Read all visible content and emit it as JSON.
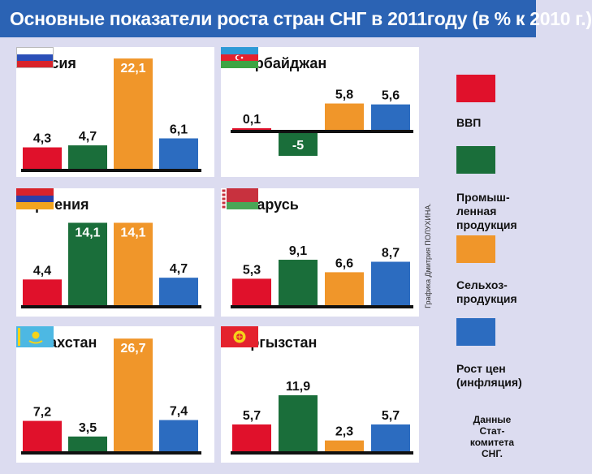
{
  "title": "Основные показатели роста стран СНГ в 2011году (в % к 2010 г.)",
  "legend": [
    {
      "label": "ВВП",
      "color": "#e0112b"
    },
    {
      "label": "Промыш-\nленная\nпродукция",
      "color": "#1a6e3a"
    },
    {
      "label": "Сельхоз-\nпродукция",
      "color": "#f0962a"
    },
    {
      "label": "Рост цен\n(инфляция)",
      "color": "#2c6cc0"
    }
  ],
  "credit": "Графика Дмитрия ПОЛУХИНА.",
  "source_note": "Данные\nСтат-\nкомитета\nСНГ.",
  "icons": [
    "russia-flag-icon",
    "azerbaijan-flag-icon",
    "armenia-flag-icon",
    "belarus-flag-icon",
    "kazakhstan-flag-icon",
    "kyrgyzstan-flag-icon"
  ],
  "chart_data": [
    {
      "type": "bar",
      "title": "Россия",
      "categories": [
        "ВВП",
        "Промышленная продукция",
        "Сельхозпродукция",
        "Рост цен (инфляция)"
      ],
      "values": [
        4.3,
        4.7,
        22.1,
        6.1
      ],
      "labels": [
        "4,3",
        "4,7",
        "22,1",
        "6,1"
      ]
    },
    {
      "type": "bar",
      "title": "Азербайджан",
      "categories": [
        "ВВП",
        "Промышленная продукция",
        "Сельхозпродукция",
        "Рост цен (инфляция)"
      ],
      "values": [
        0.1,
        -5,
        5.8,
        5.6
      ],
      "labels": [
        "0,1",
        "-5",
        "5,8",
        "5,6"
      ]
    },
    {
      "type": "bar",
      "title": "Армения",
      "categories": [
        "ВВП",
        "Промышленная продукция",
        "Сельхозпродукция",
        "Рост цен (инфляция)"
      ],
      "values": [
        4.4,
        14.1,
        14.1,
        4.7
      ],
      "labels": [
        "4,4",
        "14,1",
        "14,1",
        "4,7"
      ]
    },
    {
      "type": "bar",
      "title": "Беларусь",
      "categories": [
        "ВВП",
        "Промышленная продукция",
        "Сельхозпродукция",
        "Рост цен (инфляция)"
      ],
      "values": [
        5.3,
        9.1,
        6.6,
        8.7
      ],
      "labels": [
        "5,3",
        "9,1",
        "6,6",
        "8,7"
      ]
    },
    {
      "type": "bar",
      "title": "Казахстан",
      "categories": [
        "ВВП",
        "Промышленная продукция",
        "Сельхозпродукция",
        "Рост цен (инфляция)"
      ],
      "values": [
        7.2,
        3.5,
        26.7,
        7.4
      ],
      "labels": [
        "7,2",
        "3,5",
        "26,7",
        "7,4"
      ]
    },
    {
      "type": "bar",
      "title": "Кыргызстан",
      "categories": [
        "ВВП",
        "Промышленная продукция",
        "Сельхозпродукция",
        "Рост цен (инфляция)"
      ],
      "values": [
        5.7,
        11.9,
        2.3,
        5.7
      ],
      "labels": [
        "5,7",
        "11,9",
        "2,3",
        "5,7"
      ]
    }
  ]
}
